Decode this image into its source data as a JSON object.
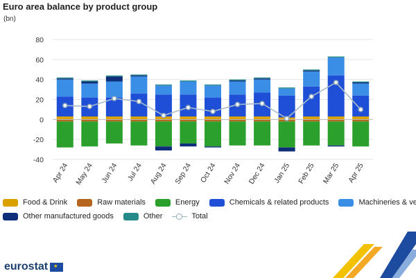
{
  "title": "Euro area balance by product group",
  "unit": "(bn)",
  "logo": {
    "text": "eurostat",
    "flag_symbol": "★"
  },
  "colors": {
    "food_drink": "#d9a000",
    "raw_materials": "#b5651d",
    "energy": "#2ca02c",
    "chemicals": "#1f4fd6",
    "machinery": "#3a8ee6",
    "other_manufactured": "#0f2e7a",
    "other": "#278a8a",
    "total": "#8fa9bb"
  },
  "legend": [
    {
      "key": "food_drink",
      "label": "Food & Drink"
    },
    {
      "key": "raw_materials",
      "label": "Raw materials"
    },
    {
      "key": "energy",
      "label": "Energy"
    },
    {
      "key": "chemicals",
      "label": "Chemicals & related products"
    },
    {
      "key": "machinery",
      "label": "Machineries & vehicles"
    },
    {
      "key": "other_manufactured",
      "label": "Other manufactured goods"
    },
    {
      "key": "other",
      "label": "Other"
    },
    {
      "key": "total",
      "label": "Total"
    }
  ],
  "chart_data": {
    "type": "bar",
    "stacked": true,
    "title": "Euro area balance by product group",
    "ylabel": "(bn)",
    "xlabel": "",
    "ylim": [
      -40,
      80
    ],
    "yticks": [
      -40,
      -20,
      0,
      20,
      40,
      60,
      80
    ],
    "grid": true,
    "legend_position": "bottom",
    "categories": [
      "Apr 24",
      "May 24",
      "Jun 24",
      "Jul 24",
      "Aug 24",
      "Sep 24",
      "Oct 24",
      "Nov 24",
      "Dec 24",
      "Jan 25",
      "Feb 25",
      "Mar 25",
      "Apr 25"
    ],
    "series": [
      {
        "key": "food_drink",
        "name": "Food & Drink",
        "values": [
          3,
          3,
          3,
          3,
          3,
          3,
          3,
          3,
          3,
          2,
          3,
          3,
          3
        ]
      },
      {
        "key": "raw_materials",
        "name": "Raw materials",
        "values": [
          -2,
          -2,
          -2,
          -2,
          -2,
          -2,
          -2,
          -2,
          -2,
          -2,
          -2,
          -2,
          -2
        ]
      },
      {
        "key": "energy",
        "name": "Energy",
        "values": [
          -26,
          -25,
          -22,
          -24,
          -25,
          -22,
          -25,
          -24,
          -24,
          -26,
          -24,
          -24,
          -25
        ]
      },
      {
        "key": "chemicals",
        "name": "Chemicals & related products",
        "values": [
          20,
          19,
          19,
          23,
          22,
          22,
          19,
          22,
          24,
          22,
          30,
          41,
          21
        ]
      },
      {
        "key": "machinery",
        "name": "Machineries & vehicles",
        "values": [
          17,
          14,
          16,
          17,
          9,
          13,
          12,
          13,
          13,
          7,
          15,
          18,
          12
        ]
      },
      {
        "key": "other_manufactured",
        "name": "Other manufactured goods",
        "values": [
          1,
          2,
          5,
          1,
          -4,
          -3,
          -1,
          1,
          1,
          -4,
          1,
          -1,
          1
        ]
      },
      {
        "key": "other",
        "name": "Other",
        "values": [
          1,
          1,
          1,
          1,
          1,
          1,
          1,
          1,
          1,
          1,
          1,
          1,
          1
        ]
      }
    ],
    "total": {
      "name": "Total",
      "values": [
        14,
        13,
        21,
        18,
        4,
        12,
        8,
        15,
        16,
        1,
        23,
        37,
        10
      ]
    }
  }
}
